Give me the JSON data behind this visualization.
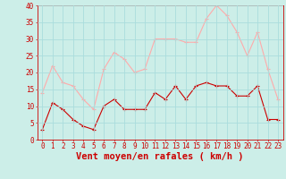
{
  "hours": [
    0,
    1,
    2,
    3,
    4,
    5,
    6,
    7,
    8,
    9,
    10,
    11,
    12,
    13,
    14,
    15,
    16,
    17,
    18,
    19,
    20,
    21,
    22,
    23
  ],
  "wind_avg": [
    3,
    11,
    9,
    6,
    4,
    3,
    10,
    12,
    9,
    9,
    9,
    14,
    12,
    16,
    12,
    16,
    17,
    16,
    16,
    13,
    13,
    16,
    6,
    6
  ],
  "wind_gust": [
    14,
    22,
    17,
    16,
    12,
    9,
    21,
    26,
    24,
    20,
    21,
    30,
    30,
    30,
    29,
    29,
    36,
    40,
    37,
    32,
    25,
    32,
    21,
    12
  ],
  "avg_color": "#cc0000",
  "gust_color": "#ffaaaa",
  "bg_color": "#cceee8",
  "grid_color": "#aadddd",
  "ylim": [
    0,
    40
  ],
  "yticks": [
    0,
    5,
    10,
    15,
    20,
    25,
    30,
    35,
    40
  ],
  "xlabel": "Vent moyen/en rafales ( km/h )",
  "axis_color": "#cc0000",
  "tick_fontsize": 5.5,
  "xlabel_fontsize": 7.5
}
